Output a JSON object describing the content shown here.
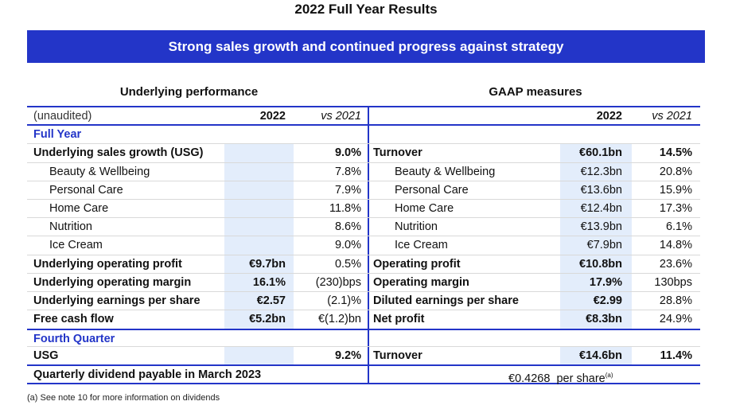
{
  "page_title": "2022 Full Year Results",
  "banner": "Strong sales growth and continued progress against strategy",
  "sections": {
    "left_title": "Underlying performance",
    "right_title": "GAAP measures"
  },
  "header": {
    "left_label": "(unaudited)",
    "left_year": "2022",
    "left_vs": "vs 2021",
    "right_year": "2022",
    "right_vs": "vs 2021"
  },
  "groups": {
    "full_year": "Full Year",
    "fourth_quarter": "Fourth Quarter"
  },
  "rows": [
    {
      "l_label": "Underlying sales growth (USG)",
      "l_val": "",
      "l_chg": "9.0%",
      "r_label": "Turnover",
      "r_val": "€60.1bn",
      "r_chg": "14.5%"
    },
    {
      "l_label": "Beauty & Wellbeing",
      "l_val": "",
      "l_chg": "7.8%",
      "r_label": "Beauty & Wellbeing",
      "r_val": "€12.3bn",
      "r_chg": "20.8%"
    },
    {
      "l_label": "Personal Care",
      "l_val": "",
      "l_chg": "7.9%",
      "r_label": "Personal Care",
      "r_val": "€13.6bn",
      "r_chg": "15.9%"
    },
    {
      "l_label": "Home Care",
      "l_val": "",
      "l_chg": "11.8%",
      "r_label": "Home Care",
      "r_val": "€12.4bn",
      "r_chg": "17.3%"
    },
    {
      "l_label": "Nutrition",
      "l_val": "",
      "l_chg": "8.6%",
      "r_label": "Nutrition",
      "r_val": "€13.9bn",
      "r_chg": "6.1%"
    },
    {
      "l_label": "Ice Cream",
      "l_val": "",
      "l_chg": "9.0%",
      "r_label": "Ice Cream",
      "r_val": "€7.9bn",
      "r_chg": "14.8%"
    },
    {
      "l_label": "Underlying operating profit",
      "l_val": "€9.7bn",
      "l_chg": "0.5%",
      "r_label": "Operating profit",
      "r_val": "€10.8bn",
      "r_chg": "23.6%"
    },
    {
      "l_label": "Underlying operating margin",
      "l_val": "16.1%",
      "l_chg": "(230)bps",
      "r_label": "Operating margin",
      "r_val": "17.9%",
      "r_chg": "130bps"
    },
    {
      "l_label": "Underlying earnings per share",
      "l_val": "€2.57",
      "l_chg": "(2.1)%",
      "r_label": "Diluted earnings per share",
      "r_val": "€2.99",
      "r_chg": "28.8%"
    },
    {
      "l_label": "Free cash flow",
      "l_val": "€5.2bn",
      "l_chg": "€(1.2)bn",
      "r_label": "Net profit",
      "r_val": "€8.3bn",
      "r_chg": "24.9%"
    }
  ],
  "q4_row": {
    "l_label": "USG",
    "l_val": "",
    "l_chg": "9.2%",
    "r_label": "Turnover",
    "r_val": "€14.6bn",
    "r_chg": "11.4%"
  },
  "dividend": {
    "label": "Quarterly dividend payable in March 2023",
    "value": "€0.4268  per share",
    "note_marker": "(a)"
  },
  "footnote": "(a) See note 10 for more information on dividends",
  "colors": {
    "accent": "#2335c8",
    "value_shading": "#e3edfb"
  }
}
